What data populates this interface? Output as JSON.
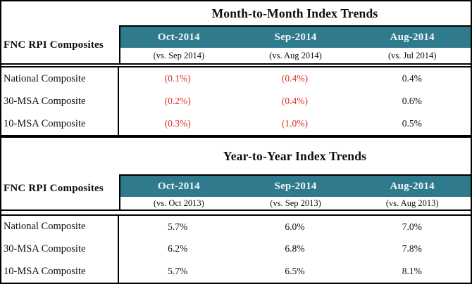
{
  "colors": {
    "teal": "#2f7a8c",
    "teal_text": "#f2f7f5",
    "negative": "#e02b22",
    "border": "#000000"
  },
  "tables": [
    {
      "title": "Month-to-Month Index Trends",
      "left_header": "FNC RPI Composites",
      "columns": [
        {
          "month": "Oct-2014",
          "vs": "(vs. Sep 2014)"
        },
        {
          "month": "Sep-2014",
          "vs": "(vs. Aug 2014)"
        },
        {
          "month": "Aug-2014",
          "vs": "(vs. Jul 2014)"
        }
      ],
      "rows": [
        {
          "label": "National Composite",
          "values": [
            "(0.1%)",
            "(0.4%)",
            "0.4%"
          ]
        },
        {
          "label": "30-MSA Composite",
          "values": [
            "(0.2%)",
            "(0.4%)",
            "0.6%"
          ]
        },
        {
          "label": "10-MSA Composite",
          "values": [
            "(0.3%)",
            "(1.0%)",
            "0.5%"
          ]
        }
      ]
    },
    {
      "title": "Year-to-Year Index Trends",
      "left_header": "FNC RPI Composites",
      "columns": [
        {
          "month": "Oct-2014",
          "vs": "(vs. Oct 2013)"
        },
        {
          "month": "Sep-2014",
          "vs": "(vs. Sep 2013)"
        },
        {
          "month": "Aug-2014",
          "vs": "(vs. Aug 2013)"
        }
      ],
      "rows": [
        {
          "label": "National Composite",
          "values": [
            "5.7%",
            "6.0%",
            "7.0%"
          ]
        },
        {
          "label": "30-MSA Composite",
          "values": [
            "6.2%",
            "6.8%",
            "7.8%"
          ]
        },
        {
          "label": "10-MSA Composite",
          "values": [
            "5.7%",
            "6.5%",
            "8.1%"
          ]
        }
      ]
    }
  ]
}
